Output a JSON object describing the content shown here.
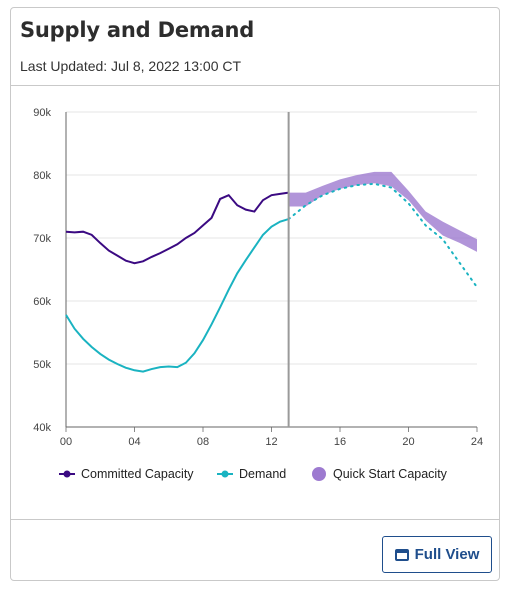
{
  "card": {
    "title": "Supply and Demand",
    "last_updated": "Last Updated: Jul 8, 2022 13:00 CT",
    "full_view_label": "Full View"
  },
  "colors": {
    "committed": "#3b0a82",
    "demand": "#1ab3c1",
    "quick_start": "#9d7ad0",
    "now_line": "#9a9a9a",
    "grid": "#e6e6e6"
  },
  "chart_data": {
    "type": "line",
    "title": "",
    "xlabel": "",
    "ylabel": "",
    "xlim": [
      0,
      24
    ],
    "ylim": [
      40000,
      90000
    ],
    "x_ticks": [
      "00",
      "04",
      "08",
      "12",
      "16",
      "20",
      "24"
    ],
    "y_ticks": [
      "40k",
      "50k",
      "60k",
      "70k",
      "80k",
      "90k"
    ],
    "current_time": 13,
    "grid": true,
    "legend_position": "bottom",
    "legend": [
      "Committed Capacity",
      "Demand",
      "Quick Start Capacity"
    ],
    "series": [
      {
        "name": "Committed Capacity",
        "style": "line",
        "x": [
          0,
          0.5,
          1,
          1.5,
          2,
          2.5,
          3,
          3.5,
          4,
          4.5,
          5,
          5.5,
          6,
          6.5,
          7,
          7.5,
          8,
          8.5,
          9,
          9.5,
          10,
          10.5,
          11,
          11.5,
          12,
          12.5,
          13
        ],
        "values": [
          71000,
          70900,
          71000,
          70500,
          69200,
          68000,
          67200,
          66400,
          66000,
          66300,
          67000,
          67600,
          68300,
          69000,
          70000,
          70800,
          72000,
          73200,
          76200,
          76800,
          75200,
          74500,
          74200,
          76000,
          76800,
          77000,
          77200
        ]
      },
      {
        "name": "Demand",
        "style": "line",
        "x": [
          0,
          0.5,
          1,
          1.5,
          2,
          2.5,
          3,
          3.5,
          4,
          4.5,
          5,
          5.5,
          6,
          6.5,
          7,
          7.5,
          8,
          8.5,
          9,
          9.5,
          10,
          10.5,
          11,
          11.5,
          12,
          12.5,
          13
        ],
        "values": [
          57800,
          55600,
          54000,
          52700,
          51600,
          50700,
          50000,
          49400,
          49000,
          48800,
          49200,
          49500,
          49600,
          49500,
          50200,
          51700,
          53800,
          56300,
          59000,
          61800,
          64400,
          66500,
          68500,
          70500,
          71800,
          72600,
          73000
        ]
      },
      {
        "name": "Demand",
        "style": "dotted-forecast",
        "x": [
          13,
          14,
          15,
          16,
          17,
          18,
          19,
          20,
          21,
          22,
          23,
          24
        ],
        "values": [
          73000,
          75200,
          76800,
          77800,
          78400,
          78600,
          78000,
          75500,
          72000,
          69800,
          66000,
          62200
        ]
      },
      {
        "name": "Quick Start Capacity",
        "style": "band",
        "x": [
          13,
          14,
          15,
          16,
          17,
          18,
          19,
          20,
          21,
          22,
          23,
          24
        ],
        "lower": [
          75000,
          75000,
          76800,
          77800,
          78400,
          78700,
          78200,
          76000,
          72800,
          70400,
          69200,
          67800
        ],
        "upper": [
          77200,
          77200,
          78300,
          79300,
          80000,
          80500,
          80500,
          77500,
          74200,
          72600,
          71200,
          69800
        ]
      }
    ]
  }
}
